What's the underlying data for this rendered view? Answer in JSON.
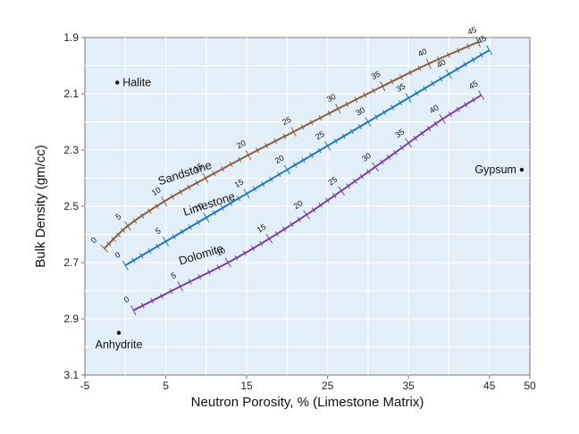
{
  "chart_data": {
    "type": "line",
    "title": "",
    "xlabel": "Neutron Porosity, % (Limestone Matrix)",
    "ylabel": "Bulk Density (gm/cc)",
    "xlim": [
      -5,
      50
    ],
    "ylim": [
      3.1,
      1.9
    ],
    "y_inverted": true,
    "x_ticks": [
      "-5",
      "5",
      "15",
      "25",
      "35",
      "45",
      "50"
    ],
    "x_tick_values": [
      -5,
      5,
      15,
      25,
      35,
      45,
      50
    ],
    "y_ticks": [
      "1.9",
      "2.1",
      "2.3",
      "2.5",
      "2.7",
      "2.9",
      "3.1"
    ],
    "y_tick_values": [
      1.9,
      2.1,
      2.3,
      2.5,
      2.7,
      2.9,
      3.1
    ],
    "grid": true,
    "series": [
      {
        "name": "Sandstone",
        "color": "#8b5e3c",
        "porosity_labels": [
          "0",
          "5",
          "10",
          "15",
          "20",
          "25",
          "30",
          "35",
          "40",
          "45"
        ],
        "points": [
          {
            "porosity": 0,
            "x": -2.6,
            "y": 2.65
          },
          {
            "porosity": 5,
            "x": 0.3,
            "y": 2.57
          },
          {
            "porosity": 10,
            "x": 4.8,
            "y": 2.483
          },
          {
            "porosity": 15,
            "x": 9.9,
            "y": 2.4
          },
          {
            "porosity": 20,
            "x": 15.2,
            "y": 2.318
          },
          {
            "porosity": 25,
            "x": 20.8,
            "y": 2.235
          },
          {
            "porosity": 30,
            "x": 26.3,
            "y": 2.153
          },
          {
            "porosity": 35,
            "x": 31.8,
            "y": 2.073
          },
          {
            "porosity": 40,
            "x": 37.5,
            "y": 1.993
          },
          {
            "porosity": 45,
            "x": 43.6,
            "y": 1.916
          }
        ]
      },
      {
        "name": "Limestone",
        "color": "#2176b8",
        "porosity_labels": [
          "0",
          "5",
          "10",
          "15",
          "20",
          "25",
          "30",
          "35",
          "40",
          "45"
        ],
        "points": [
          {
            "porosity": 0,
            "x": 0,
            "y": 2.71
          },
          {
            "porosity": 5,
            "x": 5,
            "y": 2.625
          },
          {
            "porosity": 10,
            "x": 10,
            "y": 2.54
          },
          {
            "porosity": 15,
            "x": 15,
            "y": 2.455
          },
          {
            "porosity": 20,
            "x": 20,
            "y": 2.37
          },
          {
            "porosity": 25,
            "x": 25,
            "y": 2.285
          },
          {
            "porosity": 30,
            "x": 30,
            "y": 2.2
          },
          {
            "porosity": 35,
            "x": 35,
            "y": 2.115
          },
          {
            "porosity": 40,
            "x": 40,
            "y": 2.03
          },
          {
            "porosity": 45,
            "x": 45,
            "y": 1.945
          }
        ]
      },
      {
        "name": "Dolomite",
        "color": "#7b3fa0",
        "porosity_labels": [
          "0",
          "5",
          "10",
          "15",
          "20",
          "25",
          "30",
          "35",
          "40",
          "45"
        ],
        "points": [
          {
            "porosity": 0,
            "x": 1.0,
            "y": 2.87
          },
          {
            "porosity": 5,
            "x": 6.8,
            "y": 2.785
          },
          {
            "porosity": 10,
            "x": 12.7,
            "y": 2.7
          },
          {
            "porosity": 15,
            "x": 17.8,
            "y": 2.615
          },
          {
            "porosity": 20,
            "x": 22.4,
            "y": 2.53
          },
          {
            "porosity": 25,
            "x": 26.7,
            "y": 2.445
          },
          {
            "porosity": 30,
            "x": 30.9,
            "y": 2.36
          },
          {
            "porosity": 35,
            "x": 35.0,
            "y": 2.275
          },
          {
            "porosity": 40,
            "x": 39.2,
            "y": 2.19
          },
          {
            "porosity": 45,
            "x": 44.0,
            "y": 2.105
          }
        ]
      }
    ],
    "minerals": [
      {
        "name": "Halite",
        "x": -1.0,
        "y": 2.06,
        "label_side": "right"
      },
      {
        "name": "Anhydrite",
        "x": -0.8,
        "y": 2.95,
        "label_side": "below"
      },
      {
        "name": "Gypsum",
        "x": 49.0,
        "y": 2.37,
        "label_side": "left"
      }
    ]
  },
  "colors": {
    "plot_background": "#e2eef8",
    "grid": "#ffffff",
    "axis": "#777777"
  }
}
